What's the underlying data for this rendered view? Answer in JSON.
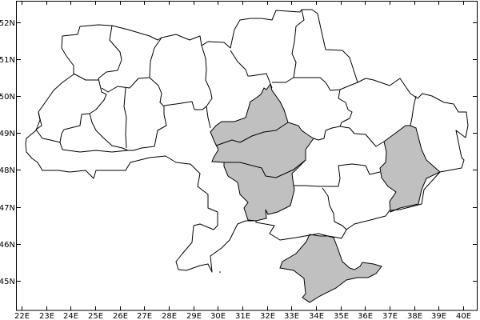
{
  "map": {
    "x_tick_labels": [
      "22E",
      "23E",
      "24E",
      "25E",
      "26E",
      "27E",
      "28E",
      "29E",
      "30E",
      "31E",
      "32E",
      "33E",
      "34E",
      "35E",
      "36E",
      "37E",
      "38E",
      "39E",
      "40E"
    ],
    "y_tick_labels": [
      "52N",
      "51N",
      "50N",
      "49N",
      "48N",
      "47N",
      "46N",
      "45N"
    ],
    "x_tick_values": [
      22,
      23,
      24,
      25,
      26,
      27,
      28,
      29,
      30,
      31,
      32,
      33,
      34,
      35,
      36,
      37,
      38,
      39,
      40
    ],
    "y_tick_values": [
      52,
      51,
      50,
      49,
      48,
      47,
      46,
      45
    ],
    "colors": {
      "highlight_fill": "#c0c0c0",
      "background": "#ffffff",
      "boundary": "#000000"
    }
  }
}
